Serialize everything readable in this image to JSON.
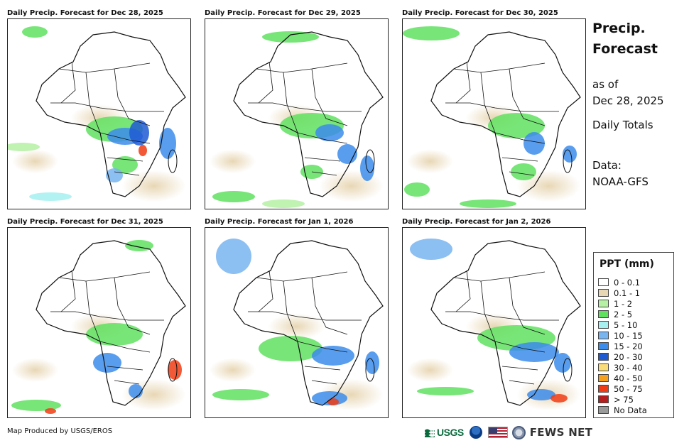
{
  "panels": [
    {
      "title": "Daily Precip. Forecast for Dec 28, 2025"
    },
    {
      "title": "Daily Precip. Forecast for Dec 29, 2025"
    },
    {
      "title": "Daily Precip. Forecast for Dec 30, 2025"
    },
    {
      "title": "Daily Precip. Forecast for Dec 31, 2025"
    },
    {
      "title": "Daily Precip. Forecast for Jan 1, 2026"
    },
    {
      "title": "Daily Precip. Forecast for Jan 2, 2026"
    }
  ],
  "info": {
    "title_line1": "Precip.",
    "title_line2": "Forecast",
    "as_of_label": "as of",
    "as_of_date": "Dec 28, 2025",
    "totals": "Daily Totals",
    "data_label": "Data:",
    "data_source": "NOAA-GFS"
  },
  "legend": {
    "title": "PPT (mm)",
    "items": [
      {
        "label": "0 - 0.1",
        "color": "#ffffff"
      },
      {
        "label": "0.1 - 1",
        "color": "#e8d7b5"
      },
      {
        "label": "1 - 2",
        "color": "#b5f0a4"
      },
      {
        "label": "2 - 5",
        "color": "#5fe05f"
      },
      {
        "label": "5 - 10",
        "color": "#a6f0f0"
      },
      {
        "label": "10 - 15",
        "color": "#78b4f0"
      },
      {
        "label": "15 - 20",
        "color": "#3c8ceb"
      },
      {
        "label": "20 - 30",
        "color": "#1e5ad2"
      },
      {
        "label": "30 - 40",
        "color": "#fadc78"
      },
      {
        "label": "40 - 50",
        "color": "#f5a01e"
      },
      {
        "label": "50 - 75",
        "color": "#f03c14"
      },
      {
        "label": "> 75",
        "color": "#b41e1e"
      },
      {
        "label": "No Data",
        "color": "#9a9a9a"
      }
    ]
  },
  "footer": {
    "producer": "Map Produced by USGS/EROS"
  },
  "logos": {
    "usgs": "USGS",
    "fews": "FEWS NET",
    "icons": [
      "usgs-logo",
      "noaa-logo",
      "us-flag",
      "state-dept-seal"
    ]
  }
}
